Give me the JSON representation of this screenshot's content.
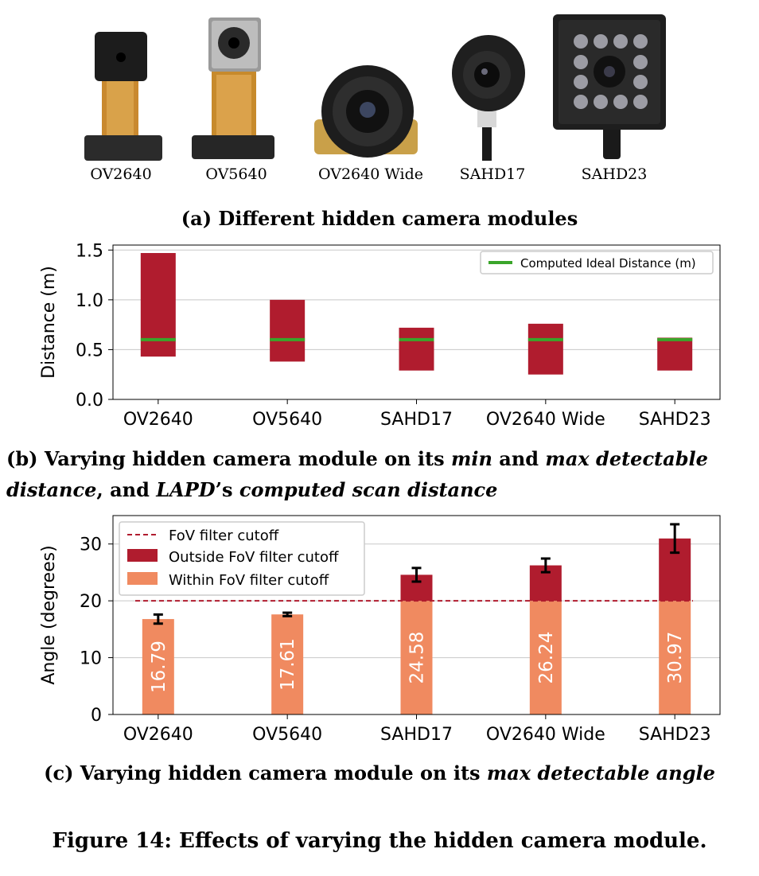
{
  "panel_a": {
    "caption": "(a) Different hidden camera modules",
    "cameras": [
      "OV2640",
      "OV5640",
      "OV2640 Wide",
      "SAHD17",
      "SAHD23"
    ],
    "photo_icons": [
      "ov2640-module-photo",
      "ov5640-module-photo",
      "ov2640-wide-module-photo",
      "sahd17-module-photo",
      "sahd23-module-photo"
    ]
  },
  "panel_b": {
    "caption_part1": "(b) Varying hidden camera module on its ",
    "caption_em1": "min",
    "caption_part2": " and ",
    "caption_em2": "max detectable",
    "caption_em3": "distance",
    "caption_part3": ", and ",
    "caption_em4": "LAPD",
    "caption_part4": "’s ",
    "caption_em5": "computed scan distance"
  },
  "panel_c": {
    "caption_part1": "(c) Varying hidden camera module on its ",
    "caption_em1": "max detectable angle"
  },
  "figure_caption": "Figure 14: Effects of varying the hidden camera module.",
  "chart_data": [
    {
      "type": "bar",
      "subtype": "floating-range",
      "categories": [
        "OV2640",
        "OV5640",
        "SAHD17",
        "OV2640 Wide",
        "SAHD23"
      ],
      "series": [
        {
          "name": "",
          "min": [
            0.43,
            0.38,
            0.29,
            0.25,
            0.29
          ],
          "max": [
            1.47,
            1.0,
            0.72,
            0.76,
            0.62
          ],
          "color": "#b01c2e"
        },
        {
          "name": "Computed Ideal Distance (m)",
          "values": [
            0.6,
            0.6,
            0.6,
            0.6,
            0.6
          ],
          "color": "#3aa52a"
        }
      ],
      "ylabel": "Distance (m)",
      "ylim": [
        0,
        1.55
      ],
      "yticks": [
        0.0,
        0.5,
        1.0,
        1.5
      ],
      "ytick_labels": [
        "0.0",
        "0.5",
        "1.0",
        "1.5"
      ],
      "grid": true,
      "legend": "top-right"
    },
    {
      "type": "bar",
      "subtype": "stacked-with-error",
      "categories": [
        "OV2640",
        "OV5640",
        "SAHD17",
        "OV2640 Wide",
        "SAHD23"
      ],
      "values": [
        16.79,
        17.61,
        24.58,
        26.24,
        30.97
      ],
      "value_labels": [
        "16.79",
        "17.61",
        "24.58",
        "26.24",
        "30.97"
      ],
      "errors": [
        0.8,
        0.3,
        1.2,
        1.2,
        2.5
      ],
      "cutoff": 20,
      "series": [
        {
          "name": "FoV filter cutoff",
          "color": "#b01c2e"
        },
        {
          "name": "Outside FoV filter cutoff",
          "color": "#b01c2e"
        },
        {
          "name": "Within FoV filter cutoff",
          "color": "#f08a60"
        }
      ],
      "ylabel": "Angle (degrees)",
      "ylim": [
        0,
        35
      ],
      "yticks": [
        0,
        10,
        20,
        30
      ],
      "ytick_labels": [
        "0",
        "10",
        "20",
        "30"
      ],
      "grid": true,
      "legend": "top-left"
    }
  ]
}
